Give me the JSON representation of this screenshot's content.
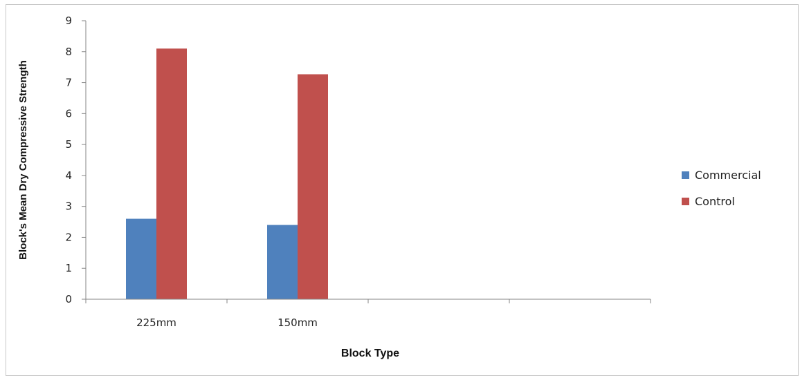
{
  "chart_data": {
    "type": "bar",
    "categories": [
      "225mm",
      "150mm",
      "",
      ""
    ],
    "series": [
      {
        "name": "Commercial",
        "values": [
          2.6,
          2.4,
          null,
          null
        ],
        "color": "#4f81bd"
      },
      {
        "name": "Control",
        "values": [
          8.1,
          7.27,
          null,
          null
        ],
        "color": "#c0504d"
      }
    ],
    "title": "",
    "xlabel": "Block Type",
    "ylabel": "Block's Mean Dry Compressive Strength",
    "ylim": [
      0,
      9
    ],
    "yticks": [
      "0",
      "1",
      "2",
      "3",
      "4",
      "5",
      "6",
      "7",
      "8",
      "9"
    ],
    "grid": false,
    "legend_position": "right"
  }
}
